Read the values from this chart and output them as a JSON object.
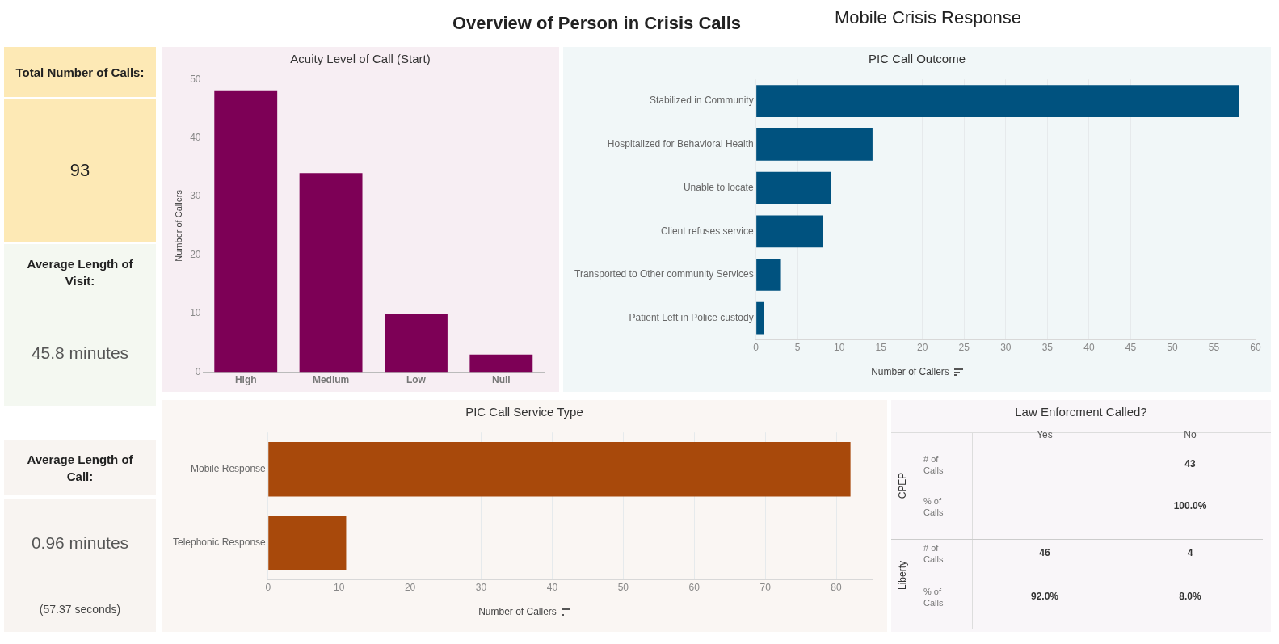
{
  "chart_data": [
    {
      "type": "other",
      "title": "Overview of Person in Crisis Calls",
      "subtitle": "Mobile Crisis Response",
      "annotations": [
        "Total Number of Calls:",
        "93",
        "Average Length of Visit:",
        "45.8 minutes",
        "Average Length of Call:",
        "0.96 minutes",
        "(57.37 seconds)"
      ]
    },
    {
      "type": "bar",
      "title": "Acuity Level of Call (Start)",
      "categories": [
        "High",
        "Medium",
        "Low",
        "Null"
      ],
      "values": [
        48,
        34,
        10,
        3
      ],
      "color": "#7d0056",
      "ylabel": "Number of Callers",
      "ylim": [
        0,
        50
      ],
      "yticks": [
        0,
        10,
        20,
        30,
        40,
        50
      ]
    },
    {
      "type": "bar",
      "orientation": "horizontal",
      "title": "PIC Call Outcome",
      "categories": [
        "Stabilized in Community",
        "Hospitalized for Behavioral Health",
        "Unable to locate",
        "Client refuses service",
        "Transported to Other community Services",
        "Patient Left in Police custody"
      ],
      "values": [
        58,
        14,
        9,
        8,
        3,
        1
      ],
      "color": "#00527f",
      "xlabel": "Number of Callers",
      "xlim": [
        0,
        60
      ],
      "xticks": [
        0,
        5,
        10,
        15,
        20,
        25,
        30,
        35,
        40,
        45,
        50,
        55,
        60
      ],
      "grid": "x"
    },
    {
      "type": "bar",
      "orientation": "horizontal",
      "title": "PIC Call Service Type",
      "categories": [
        "Mobile Response",
        "Telephonic Response"
      ],
      "values": [
        82,
        11
      ],
      "color": "#a8490b",
      "xlabel": "Number of Callers",
      "xlim": [
        0,
        85
      ],
      "xticks": [
        0,
        10,
        20,
        30,
        40,
        50,
        60,
        70,
        80
      ],
      "grid": "x"
    },
    {
      "type": "other",
      "title": "Law Enforcment Called?",
      "annotations": [
        "Yes",
        "No",
        "CPEP",
        "Liberty",
        "# of Calls",
        "% of Calls",
        "# of Calls",
        "% of Calls",
        "43",
        "100.0%",
        "46",
        "4",
        "92.0%",
        "8.0%"
      ]
    }
  ]
}
